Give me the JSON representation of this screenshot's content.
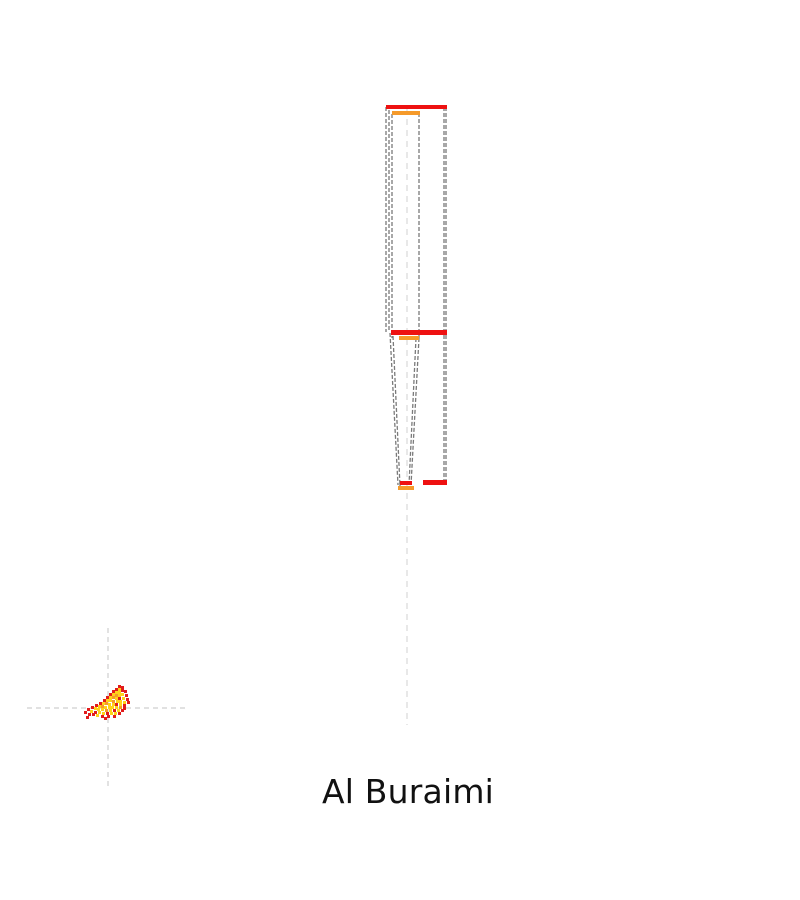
{
  "place_name": "Al Buraimi",
  "colors": {
    "boundary_red": "#ee1111",
    "district_orange": "#f59a2a",
    "guide_line": "#cfcfcf",
    "zoom_line": "#7a7a7a",
    "map_yellow": "#ffd21a",
    "map_red": "#e21b1b"
  }
}
